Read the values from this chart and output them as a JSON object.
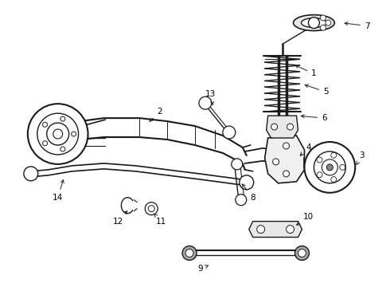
{
  "bg_color": "#ffffff",
  "line_color": "#1a1a1a",
  "label_color": "#000000",
  "fig_width": 4.9,
  "fig_height": 3.6,
  "dpi": 100,
  "label_fontsize": 7.5
}
